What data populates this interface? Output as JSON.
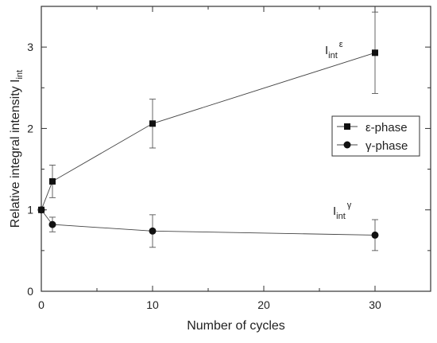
{
  "chart_data": {
    "type": "line",
    "title": "",
    "xlabel": "Number of cycles",
    "ylabel": "Relative integral intensity I",
    "ylabel_sub": "int",
    "xlim": [
      0,
      35
    ],
    "ylim": [
      0,
      3.5
    ],
    "x_ticks": [
      "0",
      "10",
      "20",
      "30"
    ],
    "y_ticks": [
      "0",
      "1",
      "2",
      "3"
    ],
    "grid": false,
    "legend_position": "right-middle",
    "series": [
      {
        "name": "ε-phase",
        "marker": "square",
        "x": [
          0,
          1,
          10,
          30
        ],
        "values": [
          1.0,
          1.35,
          2.06,
          2.93
        ],
        "err": [
          0,
          0.2,
          0.3,
          0.5
        ]
      },
      {
        "name": "γ-phase",
        "marker": "circle",
        "x": [
          0,
          1,
          10,
          30
        ],
        "values": [
          1.0,
          0.82,
          0.74,
          0.69
        ],
        "err": [
          0,
          0.09,
          0.2,
          0.19
        ]
      }
    ],
    "annotations": [
      {
        "text": "I",
        "sub": "int",
        "sup": "ε"
      },
      {
        "text": "I",
        "sub": "int",
        "sup": "γ"
      }
    ]
  }
}
